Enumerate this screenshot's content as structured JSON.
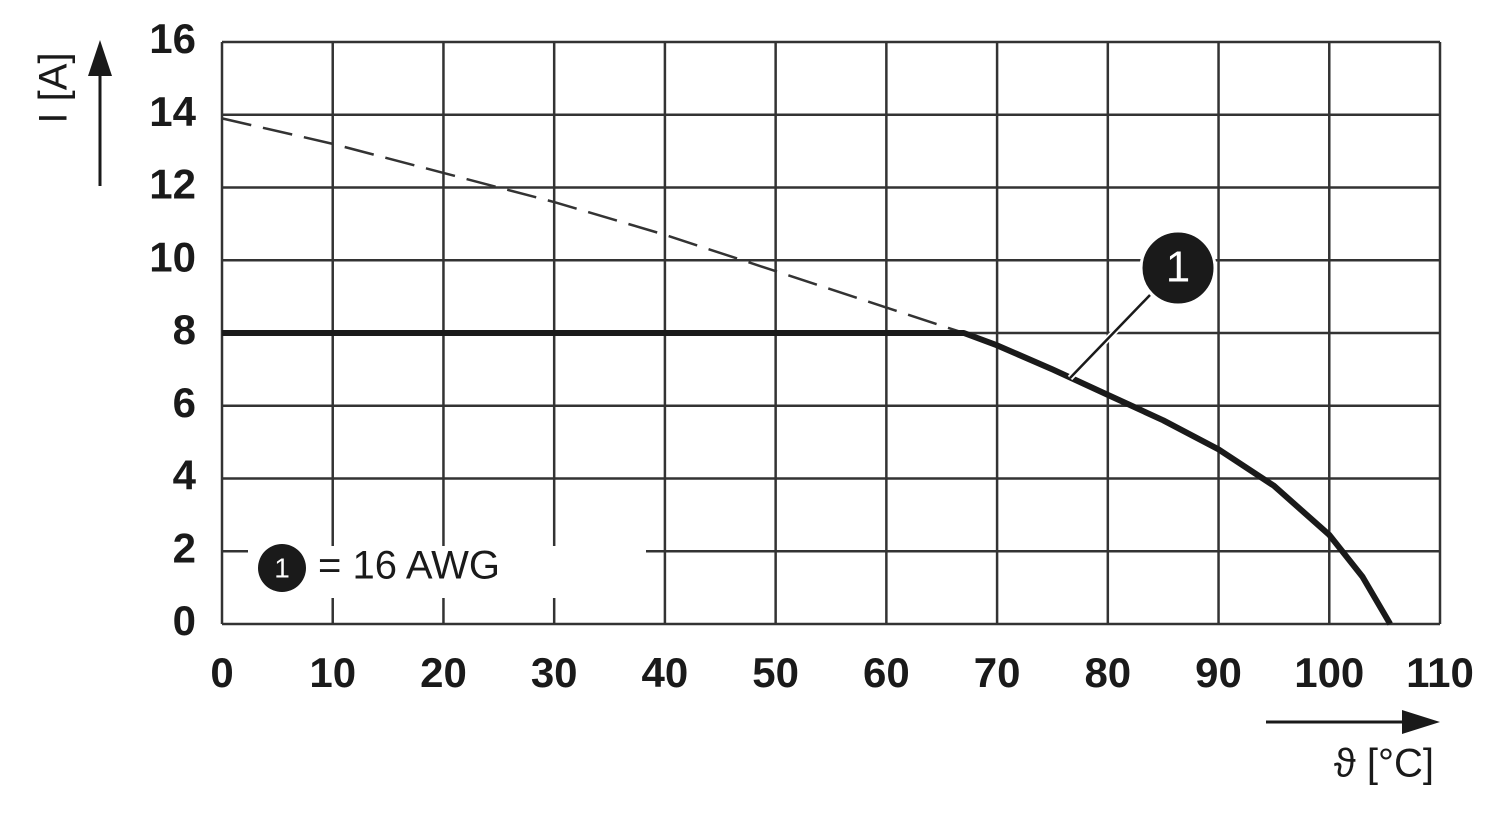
{
  "chart_data": {
    "type": "line",
    "x_label": "ϑ [°C]",
    "y_label": "I [A]",
    "xlim": [
      0,
      110
    ],
    "ylim": [
      0,
      16
    ],
    "xticks": [
      0,
      10,
      20,
      30,
      40,
      50,
      60,
      70,
      80,
      90,
      100,
      110
    ],
    "yticks": [
      0,
      2,
      4,
      6,
      8,
      10,
      12,
      14,
      16
    ],
    "grid": true,
    "legend_text": "= 16 AWG",
    "series": [
      {
        "name": "1",
        "color": "#1a1a1a",
        "dashed": false,
        "x": [
          0,
          67,
          70,
          75,
          80,
          85,
          90,
          95,
          100,
          103,
          105.5
        ],
        "values": [
          8,
          8,
          7.66,
          7.0,
          6.3,
          5.6,
          4.8,
          3.8,
          2.45,
          1.3,
          0
        ]
      },
      {
        "color": "#333333",
        "dashed": true,
        "x": [
          0,
          10,
          20,
          30,
          40,
          47,
          60,
          67
        ],
        "values": [
          13.9,
          13.2,
          12.4,
          11.6,
          10.7,
          10,
          8.7,
          8
        ]
      }
    ]
  }
}
